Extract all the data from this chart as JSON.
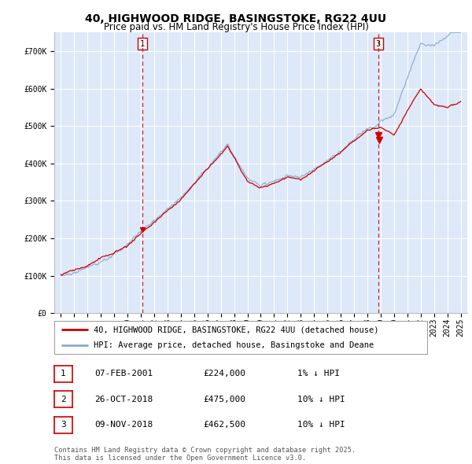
{
  "title": "40, HIGHWOOD RIDGE, BASINGSTOKE, RG22 4UU",
  "subtitle": "Price paid vs. HM Land Registry's House Price Index (HPI)",
  "xlim": [
    1994.5,
    2025.5
  ],
  "ylim": [
    0,
    750000
  ],
  "yticks": [
    0,
    100000,
    200000,
    300000,
    400000,
    500000,
    600000,
    700000
  ],
  "ytick_labels": [
    "£0",
    "£100K",
    "£200K",
    "£300K",
    "£400K",
    "£500K",
    "£600K",
    "£700K"
  ],
  "xticks": [
    1995,
    1996,
    1997,
    1998,
    1999,
    2000,
    2001,
    2002,
    2003,
    2004,
    2005,
    2006,
    2007,
    2008,
    2009,
    2010,
    2011,
    2012,
    2013,
    2014,
    2015,
    2016,
    2017,
    2018,
    2019,
    2020,
    2021,
    2022,
    2023,
    2024,
    2025
  ],
  "plot_bg": "#dde8f8",
  "grid_color": "#ffffff",
  "red_line_color": "#cc0000",
  "blue_line_color": "#88aacc",
  "vline_color": "#cc0000",
  "sale1_year": 2001.1,
  "sale1_price": 224000,
  "sale2_year": 2018.82,
  "sale2_price": 475000,
  "sale3_year": 2018.87,
  "sale3_price": 462500,
  "marker1_label": "1",
  "marker3_label": "3",
  "legend_label_red": "40, HIGHWOOD RIDGE, BASINGSTOKE, RG22 4UU (detached house)",
  "legend_label_blue": "HPI: Average price, detached house, Basingstoke and Deane",
  "table_rows": [
    {
      "num": "1",
      "date": "07-FEB-2001",
      "price": "£224,000",
      "hpi": "1% ↓ HPI"
    },
    {
      "num": "2",
      "date": "26-OCT-2018",
      "price": "£475,000",
      "hpi": "10% ↓ HPI"
    },
    {
      "num": "3",
      "date": "09-NOV-2018",
      "price": "£462,500",
      "hpi": "10% ↓ HPI"
    }
  ],
  "footnote": "Contains HM Land Registry data © Crown copyright and database right 2025.\nThis data is licensed under the Open Government Licence v3.0.",
  "title_fontsize": 10,
  "subtitle_fontsize": 8.5,
  "tick_fontsize": 7,
  "legend_fontsize": 7.5,
  "table_fontsize": 8
}
